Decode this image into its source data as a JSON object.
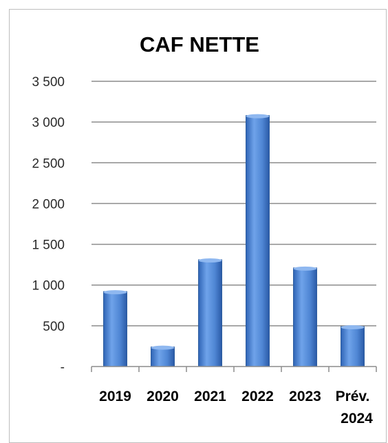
{
  "chart_data": {
    "type": "bar",
    "title": "CAF NETTE",
    "categories": [
      "2019",
      "2020",
      "2021",
      "2022",
      "2023",
      "Prév. 2024"
    ],
    "category_lines": [
      [
        "2019"
      ],
      [
        "2020"
      ],
      [
        "2021"
      ],
      [
        "2022"
      ],
      [
        "2023"
      ],
      [
        "Prév.",
        "2024"
      ]
    ],
    "values": [
      920,
      240,
      1310,
      3080,
      1210,
      490
    ],
    "ylim": [
      0,
      3500
    ],
    "yticks": [
      0,
      500,
      1000,
      1500,
      2000,
      2500,
      3000,
      3500
    ],
    "ytick_labels": [
      "-",
      "500",
      "1 000",
      "1 500",
      "2 000",
      "2 500",
      "3 000",
      "3 500"
    ],
    "xlabel": "",
    "ylabel": "",
    "grid": true,
    "legend": "none",
    "bar_color": "#4f86d4",
    "bar_edge_color": "#2c5c9e"
  }
}
